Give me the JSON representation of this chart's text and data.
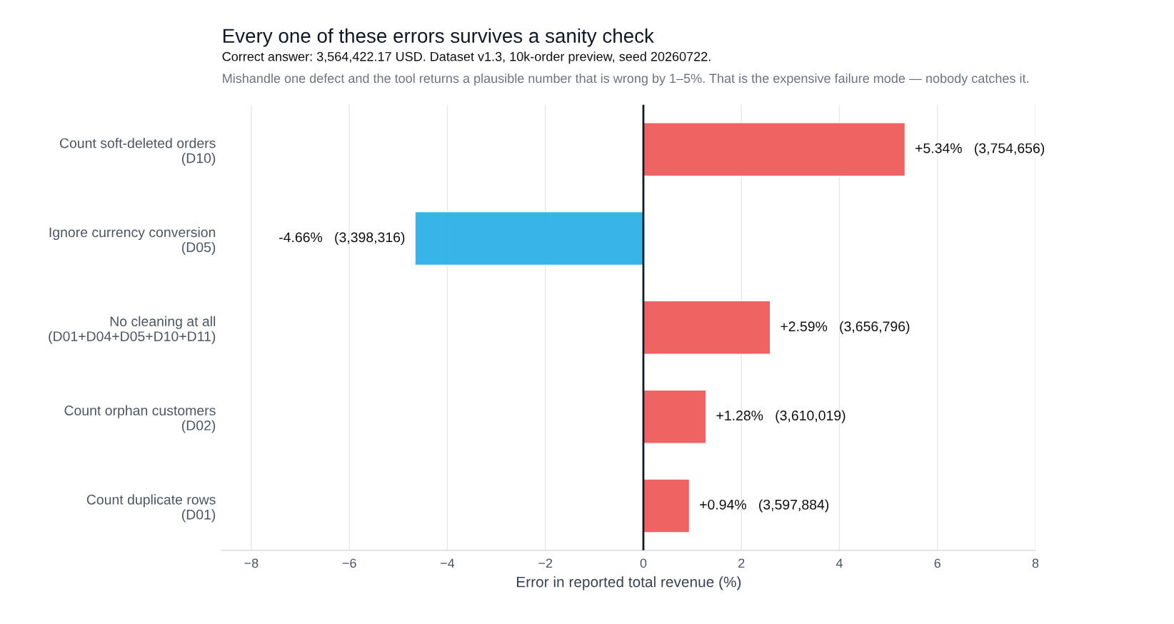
{
  "chart_data": {
    "type": "bar",
    "orientation": "horizontal",
    "title": "Every one of these errors survives a sanity check",
    "subtitle": "Correct answer: 3,564,422.17 USD. Dataset v1.3, 10k-order preview, seed 20260722.",
    "annotations": [
      "Mishandle one defect and the tool returns a plausible number that is wrong by 1–5%. That is the expensive failure mode — nobody catches it."
    ],
    "xlabel": "Error in reported total revenue (%)",
    "categories": [
      "Count soft-deleted orders\n(D10)",
      "Ignore currency conversion\n(D05)",
      "No cleaning at all\n(D01+D04+D05+D10+D11)",
      "Count orphan customers\n(D02)",
      "Count duplicate rows\n(D01)"
    ],
    "values": [
      5.34,
      -4.66,
      2.59,
      1.28,
      0.94
    ],
    "colors": [
      "#ef5b5b",
      "#2eb0e8",
      "#ef5b5b",
      "#ef5b5b",
      "#ef5b5b"
    ],
    "value_labels": [
      "+5.34%   (3,754,656)",
      "-4.66%   (3,398,316)",
      "+2.59%   (3,656,796)",
      "+1.28%   (3,610,019)",
      "+0.94%   (3,597,884)"
    ],
    "xlim": [
      -8.6,
      8.0
    ],
    "xticks": [
      {
        "value": -8,
        "label": "−8"
      },
      {
        "value": -6,
        "label": "−6"
      },
      {
        "value": -4,
        "label": "−4"
      },
      {
        "value": -2,
        "label": "−2"
      },
      0,
      2,
      4,
      6,
      8
    ],
    "ref_lines": [
      {
        "axis": "x",
        "value": 0,
        "color": "#111827"
      }
    ],
    "grid": "x"
  }
}
